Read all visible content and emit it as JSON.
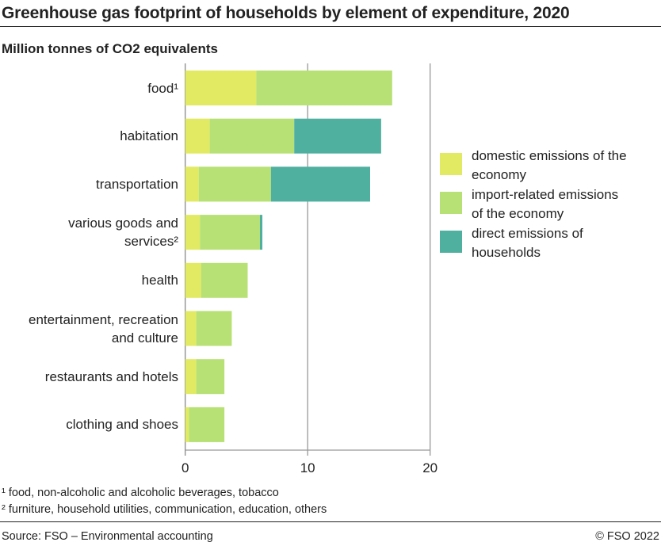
{
  "title": "Greenhouse gas footprint of households by element of expenditure, 2020",
  "subtitle": "Million tonnes of CO2 equivalents",
  "footnotes": [
    "¹ food, non-alcoholic and alcoholic beverages, tobacco",
    "² furniture, household utilities, communication, education, others"
  ],
  "source": "Source: FSO – Environmental accounting",
  "copyright": "© FSO 2022",
  "chart_data": {
    "type": "bar",
    "orientation": "horizontal",
    "stacked": true,
    "title": "Greenhouse gas footprint of households by element of expenditure, 2020",
    "ylabel": "Million tonnes of CO2 equivalents",
    "categories": [
      "food¹",
      "habitation",
      "transportation",
      "various goods and services²",
      "health",
      "entertainment, recreation and culture",
      "restaurants and hotels",
      "clothing and shoes"
    ],
    "category_lines": [
      [
        "food¹"
      ],
      [
        "habitation"
      ],
      [
        "transportation"
      ],
      [
        "various goods and",
        "services²"
      ],
      [
        "health"
      ],
      [
        "entertainment, recreation",
        "and culture"
      ],
      [
        "restaurants and hotels"
      ],
      [
        "clothing and shoes"
      ]
    ],
    "series": [
      {
        "name": "domestic emissions of the economy",
        "name_lines": [
          "domestic emissions of the",
          "economy"
        ],
        "color": "#e1ea62",
        "values": [
          5.8,
          2.0,
          1.1,
          1.2,
          1.3,
          0.9,
          0.9,
          0.3
        ]
      },
      {
        "name": "import-related emissions of the economy",
        "name_lines": [
          "import-related emissions",
          "of the economy"
        ],
        "color": "#b7e174",
        "values": [
          11.1,
          6.9,
          5.9,
          4.9,
          3.8,
          2.9,
          2.3,
          2.9
        ]
      },
      {
        "name": "direct emissions of households",
        "name_lines": [
          "direct emissions of",
          "households"
        ],
        "color": "#50b0a0",
        "values": [
          0,
          7.1,
          8.1,
          0.2,
          0,
          0,
          0,
          0
        ]
      }
    ],
    "xlim": [
      0,
      20
    ],
    "xticks": [
      "0",
      "10",
      "20"
    ],
    "grid": true,
    "legend": "right"
  }
}
